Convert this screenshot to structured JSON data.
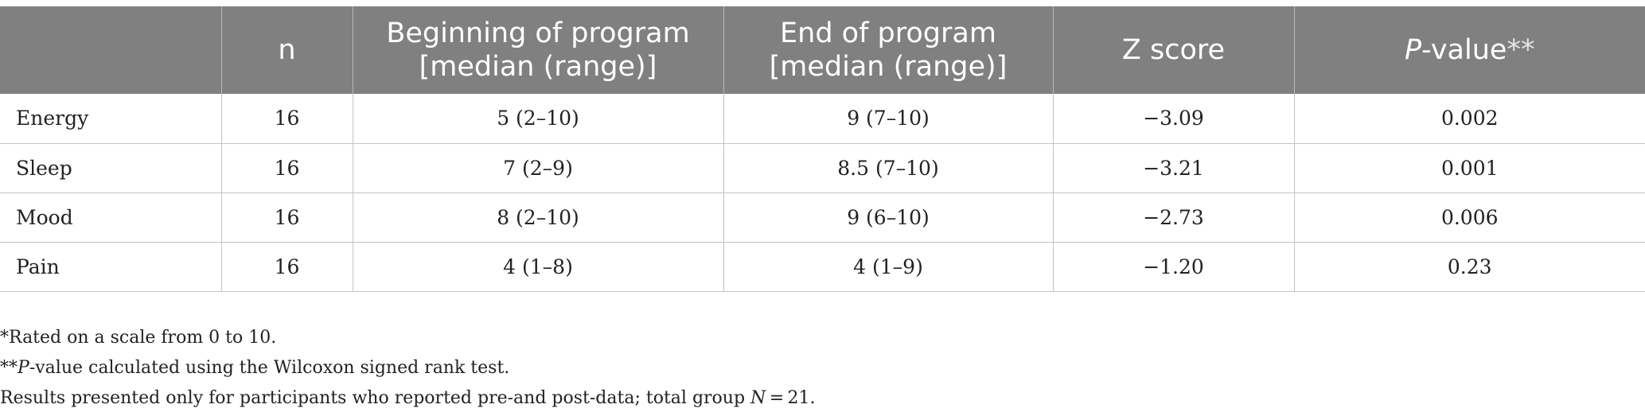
{
  "table": {
    "header": {
      "label": "",
      "n": "n",
      "beginning_line1": "Beginning of program",
      "beginning_line2": "[median (range)]",
      "end_line1": "End of program",
      "end_line2": "[median (range)]",
      "z": "Z score",
      "p_italic": "P",
      "p_rest": "-value",
      "p_stars": "**"
    },
    "rows": [
      {
        "label": "Energy",
        "n": "16",
        "beginning": "5 (2–10)",
        "end": "9 (7–10)",
        "z": "−3.09",
        "p": "0.002"
      },
      {
        "label": "Sleep",
        "n": "16",
        "beginning": "7 (2–9)",
        "end": "8.5 (7–10)",
        "z": "−3.21",
        "p": "0.001"
      },
      {
        "label": "Mood",
        "n": "16",
        "beginning": "8 (2–10)",
        "end": "9 (6–10)",
        "z": "−2.73",
        "p": "0.006"
      },
      {
        "label": "Pain",
        "n": "16",
        "beginning": "4 (1–8)",
        "end": "4 (1–9)",
        "z": "−1.20",
        "p": "0.23"
      }
    ]
  },
  "notes": {
    "note1": "*Rated on a scale from 0 to 10.",
    "note2_prefix": "**",
    "note2_italic": "P",
    "note2_rest": "-value calculated using the Wilcoxon signed rank test.",
    "note3_prefix": "Results presented only for participants who reported pre-and post-data; total group ",
    "note3_italic": "N",
    "note3_suffix": " = 21."
  }
}
